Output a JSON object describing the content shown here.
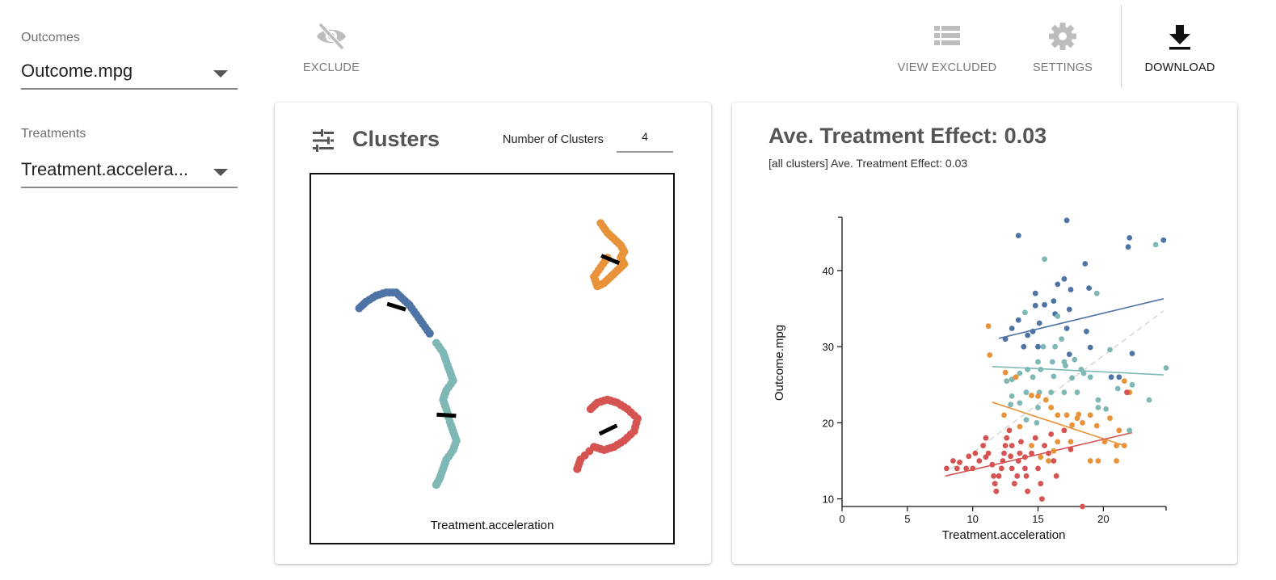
{
  "sidebar": {
    "outcomes_label": "Outcomes",
    "outcome_value": "Outcome.mpg",
    "treatments_label": "Treatments",
    "treatment_value": "Treatment.accelera..."
  },
  "toolbar": {
    "exclude_label": "EXCLUDE",
    "view_excluded_label": "VIEW EXCLUDED",
    "settings_label": "SETTINGS",
    "download_label": "DOWNLOAD"
  },
  "clusters_card": {
    "title": "Clusters",
    "number_label": "Number of Clusters",
    "number_value": "4",
    "embedding_xlabel": "Treatment.acceleration"
  },
  "ate_card": {
    "title": "Ave. Treatment Effect: 0.03",
    "subtitle": "[all clusters] Ave. Treatment Effect: 0.03"
  },
  "colors": {
    "blue": "#4e74a5",
    "teal": "#7db8b4",
    "orange": "#e8923a",
    "red": "#d55452"
  },
  "chart_data": [
    {
      "type": "scatter",
      "name": "cluster-embedding",
      "xlabel": "Treatment.acceleration",
      "ylabel": "",
      "clusters": [
        {
          "color": "orange",
          "points": [
            [
              8.2,
              9.3
            ],
            [
              8.4,
              9.0
            ],
            [
              8.6,
              8.8
            ],
            [
              8.8,
              8.6
            ],
            [
              8.9,
              8.4
            ],
            [
              8.8,
              8.2
            ],
            [
              8.9,
              8.0
            ],
            [
              8.7,
              7.8
            ],
            [
              8.5,
              7.6
            ],
            [
              8.3,
              7.4
            ],
            [
              8.1,
              7.3
            ],
            [
              8.0,
              7.6
            ],
            [
              8.2,
              7.9
            ],
            [
              8.4,
              8.2
            ]
          ]
        },
        {
          "color": "blue",
          "points": [
            [
              1.0,
              6.6
            ],
            [
              1.2,
              6.8
            ],
            [
              1.5,
              7.0
            ],
            [
              1.8,
              7.1
            ],
            [
              2.1,
              7.1
            ],
            [
              2.3,
              6.9
            ],
            [
              2.5,
              6.7
            ],
            [
              2.7,
              6.4
            ],
            [
              2.9,
              6.1
            ],
            [
              3.1,
              5.8
            ]
          ]
        },
        {
          "color": "teal",
          "points": [
            [
              3.3,
              5.5
            ],
            [
              3.5,
              5.2
            ],
            [
              3.6,
              4.9
            ],
            [
              3.7,
              4.6
            ],
            [
              3.8,
              4.3
            ],
            [
              3.6,
              4.0
            ],
            [
              3.5,
              3.7
            ],
            [
              3.6,
              3.4
            ],
            [
              3.7,
              3.0
            ],
            [
              3.8,
              2.7
            ],
            [
              3.9,
              2.4
            ],
            [
              3.8,
              2.1
            ],
            [
              3.6,
              1.8
            ],
            [
              3.5,
              1.5
            ],
            [
              3.4,
              1.2
            ],
            [
              3.3,
              1.0
            ]
          ]
        },
        {
          "color": "red",
          "points": [
            [
              7.9,
              3.4
            ],
            [
              8.1,
              3.6
            ],
            [
              8.4,
              3.7
            ],
            [
              8.7,
              3.6
            ],
            [
              9.0,
              3.4
            ],
            [
              9.3,
              3.1
            ],
            [
              9.2,
              2.7
            ],
            [
              8.9,
              2.4
            ],
            [
              8.6,
              2.2
            ],
            [
              8.3,
              2.1
            ],
            [
              8.0,
              2.2
            ],
            [
              7.6,
              1.8
            ],
            [
              7.5,
              1.5
            ]
          ]
        }
      ]
    },
    {
      "type": "scatter",
      "xlabel": "Treatment.acceleration",
      "ylabel": "Outcome.mpg",
      "xlim": [
        0,
        24.8
      ],
      "ylim": [
        9,
        47
      ],
      "xticks": [
        0,
        5,
        10,
        15,
        20
      ],
      "yticks": [
        10,
        20,
        30,
        40
      ],
      "series": [
        {
          "color": "blue",
          "points": [
            [
              13.5,
              44.6
            ],
            [
              17.2,
              46.6
            ],
            [
              22.0,
              44.3
            ],
            [
              24.6,
              44.0
            ],
            [
              21.9,
              43.1
            ],
            [
              18.6,
              40.9
            ],
            [
              17.0,
              38.9
            ],
            [
              16.5,
              38.2
            ],
            [
              14.8,
              37.0
            ],
            [
              17.5,
              37.5
            ],
            [
              18.9,
              37.7
            ],
            [
              16.2,
              36.0
            ],
            [
              15.5,
              35.5
            ],
            [
              14.8,
              35.4
            ],
            [
              17.4,
              34.9
            ],
            [
              16.3,
              34.3
            ],
            [
              13.5,
              33.5
            ],
            [
              15.1,
              33.1
            ],
            [
              13.0,
              32.4
            ],
            [
              14.6,
              32.0
            ],
            [
              17.2,
              32.4
            ],
            [
              18.7,
              32.0
            ],
            [
              12.5,
              31.0
            ],
            [
              13.9,
              30.0
            ],
            [
              15.0,
              30.0
            ],
            [
              19.0,
              29.9
            ],
            [
              17.4,
              29.0
            ],
            [
              22.2,
              29.1
            ],
            [
              20.6,
              26.0
            ],
            [
              21.2,
              26.0
            ],
            [
              14.2,
              31.5
            ]
          ]
        },
        {
          "color": "teal",
          "points": [
            [
              15.5,
              41.5
            ],
            [
              19.5,
              37.0
            ],
            [
              24.0,
              43.4
            ],
            [
              22.2,
              25.0
            ],
            [
              23.5,
              23.0
            ],
            [
              24.8,
              27.2
            ],
            [
              20.5,
              29.6
            ],
            [
              16.5,
              34.0
            ],
            [
              14.0,
              34.5
            ],
            [
              15.4,
              30.0
            ],
            [
              13.0,
              25.7
            ],
            [
              12.6,
              25.5
            ],
            [
              14.1,
              24.0
            ],
            [
              15.1,
              24.0
            ],
            [
              16.0,
              24.0
            ],
            [
              17.0,
              24.0
            ],
            [
              18.0,
              24.0
            ],
            [
              19.0,
              26.0
            ],
            [
              18.3,
              27.0
            ],
            [
              17.1,
              27.5
            ],
            [
              15.2,
              27.0
            ],
            [
              14.2,
              27.0
            ],
            [
              13.6,
              26.5
            ],
            [
              15.0,
              28.0
            ],
            [
              16.1,
              28.0
            ],
            [
              17.0,
              28.0
            ],
            [
              17.8,
              28.3
            ],
            [
              19.6,
              22.0
            ],
            [
              19.6,
              23.0
            ],
            [
              20.2,
              21.8
            ],
            [
              21.1,
              24.5
            ],
            [
              22.0,
              19.0
            ],
            [
              15.0,
              22.0
            ],
            [
              14.1,
              20.4
            ],
            [
              14.9,
              20.0
            ],
            [
              12.9,
              22.4
            ],
            [
              13.6,
              22.6
            ],
            [
              13.0,
              23.5
            ],
            [
              14.6,
              26.0
            ],
            [
              16.2,
              26.1
            ],
            [
              17.6,
              25.9
            ],
            [
              18.5,
              26.5
            ],
            [
              16.3,
              30.0
            ],
            [
              16.8,
              31.0
            ]
          ]
        },
        {
          "color": "orange",
          "points": [
            [
              11.2,
              32.7
            ],
            [
              11.3,
              28.9
            ],
            [
              12.5,
              26.6
            ],
            [
              13.3,
              26.0
            ],
            [
              14.5,
              23.6
            ],
            [
              15.0,
              23.5
            ],
            [
              15.6,
              23.0
            ],
            [
              16.0,
              22.0
            ],
            [
              16.5,
              21.0
            ],
            [
              17.2,
              21.0
            ],
            [
              18.0,
              20.6
            ],
            [
              18.4,
              20.0
            ],
            [
              19.0,
              21.0
            ],
            [
              19.5,
              19.6
            ],
            [
              20.1,
              17.5
            ],
            [
              21.0,
              17.0
            ],
            [
              21.6,
              17.0
            ],
            [
              21.2,
              19.0
            ],
            [
              20.5,
              20.6
            ],
            [
              22.0,
              24.0
            ],
            [
              21.6,
              25.5
            ],
            [
              16.5,
              17.5
            ],
            [
              17.5,
              17.5
            ],
            [
              14.5,
              17.0
            ],
            [
              15.2,
              15.5
            ],
            [
              15.8,
              15.0
            ],
            [
              16.2,
              16.3
            ],
            [
              19.0,
              15.0
            ],
            [
              19.6,
              15.0
            ],
            [
              21.0,
              15.0
            ],
            [
              18.1,
              21.1
            ],
            [
              17.6,
              19.7
            ],
            [
              12.4,
              21.0
            ],
            [
              13.6,
              19.5
            ]
          ]
        },
        {
          "color": "red",
          "points": [
            [
              8.0,
              14.0
            ],
            [
              8.5,
              15.0
            ],
            [
              8.8,
              14.0
            ],
            [
              9.0,
              14.8
            ],
            [
              9.5,
              14.0
            ],
            [
              9.7,
              15.6
            ],
            [
              10.0,
              14.0
            ],
            [
              10.2,
              16.0
            ],
            [
              10.5,
              15.0
            ],
            [
              10.8,
              17.0
            ],
            [
              11.0,
              18.0
            ],
            [
              11.2,
              16.0
            ],
            [
              11.5,
              14.5
            ],
            [
              11.6,
              13.0
            ],
            [
              11.7,
              12.0
            ],
            [
              11.8,
              11.0
            ],
            [
              12.0,
              13.0
            ],
            [
              12.2,
              14.0
            ],
            [
              12.3,
              15.0
            ],
            [
              12.4,
              16.0
            ],
            [
              12.5,
              17.0
            ],
            [
              12.6,
              18.0
            ],
            [
              12.8,
              19.0
            ],
            [
              13.0,
              14.0
            ],
            [
              13.2,
              12.0
            ],
            [
              13.4,
              13.0
            ],
            [
              13.5,
              15.0
            ],
            [
              13.6,
              16.0
            ],
            [
              13.7,
              17.5
            ],
            [
              14.0,
              14.0
            ],
            [
              14.1,
              13.0
            ],
            [
              14.2,
              11.0
            ],
            [
              14.5,
              16.0
            ],
            [
              14.8,
              18.0
            ],
            [
              15.0,
              14.0
            ],
            [
              15.2,
              12.0
            ],
            [
              15.3,
              10.0
            ],
            [
              15.5,
              17.0
            ],
            [
              15.8,
              16.0
            ],
            [
              16.0,
              18.5
            ],
            [
              16.2,
              15.0
            ],
            [
              16.4,
              13.0
            ],
            [
              17.0,
              19.0
            ],
            [
              17.5,
              16.5
            ],
            [
              18.4,
              9.0
            ],
            [
              21.8,
              24.0
            ],
            [
              13.0,
              17.0
            ],
            [
              14.0,
              15.5
            ],
            [
              12.9,
              15.6
            ],
            [
              11.0,
              15.5
            ]
          ]
        }
      ],
      "fit_lines": [
        {
          "color": "blue",
          "from": [
            12.0,
            31.1
          ],
          "to": [
            24.6,
            36.3
          ]
        },
        {
          "color": "teal",
          "from": [
            11.5,
            27.4
          ],
          "to": [
            24.6,
            26.3
          ]
        },
        {
          "color": "orange",
          "from": [
            11.5,
            22.7
          ],
          "to": [
            21.6,
            17.0
          ]
        },
        {
          "color": "red",
          "from": [
            7.9,
            13.0
          ],
          "to": [
            22.2,
            18.7
          ]
        },
        {
          "color": "gray-dashed",
          "from": [
            8.3,
            13.9
          ],
          "to": [
            24.6,
            34.7
          ]
        }
      ]
    }
  ]
}
